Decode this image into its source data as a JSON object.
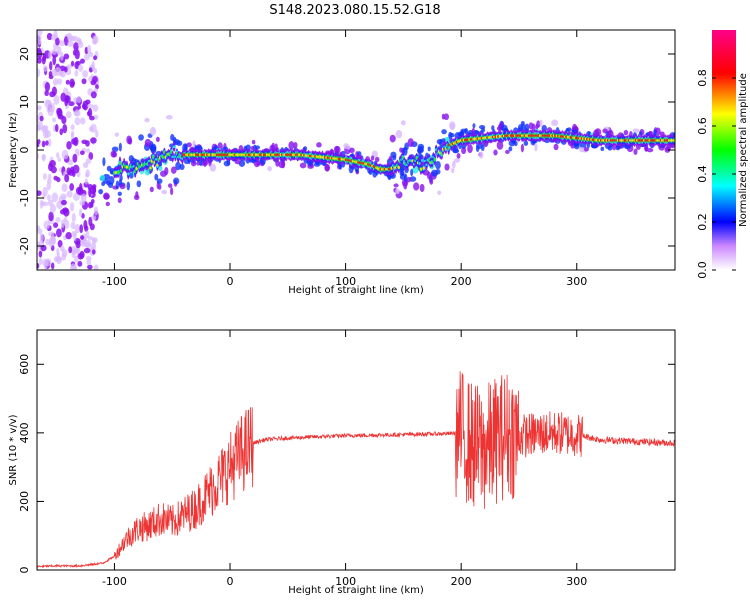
{
  "title": "S148.2023.080.15.52.G18",
  "colors": {
    "snr_line": "#ee3333"
  },
  "chart_data": [
    {
      "type": "heatmap",
      "xlabel": "Height of straight line (km)",
      "ylabel": "Frequency (Hz)",
      "xlim": [
        -167,
        385
      ],
      "ylim": [
        -25,
        25
      ],
      "x_ticks": [
        -100,
        0,
        100,
        200,
        300
      ],
      "y_ticks": [
        -20,
        -10,
        0,
        10,
        20
      ],
      "grid": false,
      "colorbar": {
        "label": "Normalized spectral amplitude",
        "range": [
          0,
          1
        ],
        "ticks": [
          "0.0",
          "0.2",
          "0.4",
          "0.6",
          "0.8"
        ],
        "colormap": [
          "#ffffff",
          "#8800ff",
          "#0000ff",
          "#00ffff",
          "#00ff00",
          "#ffff00",
          "#ff0000",
          "#ff0088"
        ]
      },
      "ridge": {
        "x": [
          -110,
          -90,
          -70,
          -50,
          -40,
          -30,
          -10,
          0,
          30,
          60,
          80,
          100,
          110,
          120,
          130,
          140,
          150,
          170,
          190,
          200,
          220,
          240,
          260,
          280,
          300,
          320,
          340,
          360,
          385
        ],
        "y": [
          -5,
          -4,
          -3,
          -1,
          -1,
          -1,
          -1,
          -1,
          -1,
          -1,
          -1.5,
          -2,
          -2.5,
          -3,
          -4,
          -4,
          -2,
          -3,
          1,
          2,
          2.5,
          3,
          3,
          3,
          2.5,
          2,
          2,
          2,
          2
        ]
      }
    },
    {
      "type": "line",
      "xlabel": "Height of straight line (km)",
      "ylabel": "SNR (10 * v/v)",
      "xlim": [
        -167,
        385
      ],
      "ylim": [
        0,
        700
      ],
      "x_ticks": [
        -100,
        0,
        100,
        200,
        300
      ],
      "y_ticks": [
        0,
        200,
        400,
        600
      ],
      "grid": false,
      "series": [
        {
          "x": [
            -167,
            -150,
            -130,
            -110,
            -100,
            -90,
            -80,
            -70,
            -60,
            -50,
            -40,
            -30,
            -20,
            -10,
            0,
            10,
            20,
            30,
            50,
            100,
            150,
            190,
            200,
            210,
            220,
            230,
            240,
            250,
            260,
            280,
            300,
            320,
            350,
            385
          ],
          "y": [
            10,
            12,
            12,
            20,
            40,
            90,
            120,
            130,
            150,
            140,
            160,
            180,
            220,
            260,
            300,
            340,
            370,
            380,
            385,
            392,
            395,
            398,
            400,
            360,
            350,
            380,
            400,
            390,
            395,
            400,
            395,
            380,
            375,
            370
          ]
        }
      ]
    }
  ]
}
